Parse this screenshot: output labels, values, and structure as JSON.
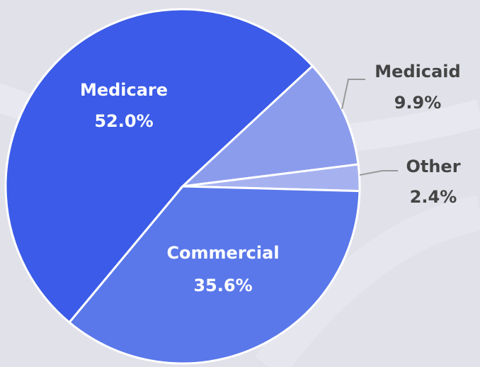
{
  "chart_data": {
    "type": "pie",
    "categories": [
      "Medicare",
      "Medicaid",
      "Other",
      "Commercial"
    ],
    "values": [
      52.0,
      9.9,
      2.4,
      35.6
    ],
    "value_labels": [
      "52.0%",
      "9.9%",
      "2.4%",
      "35.6%"
    ],
    "colors": [
      "#3b5be8",
      "#8c9ced",
      "#a6b2f0",
      "#5a78ea"
    ]
  }
}
